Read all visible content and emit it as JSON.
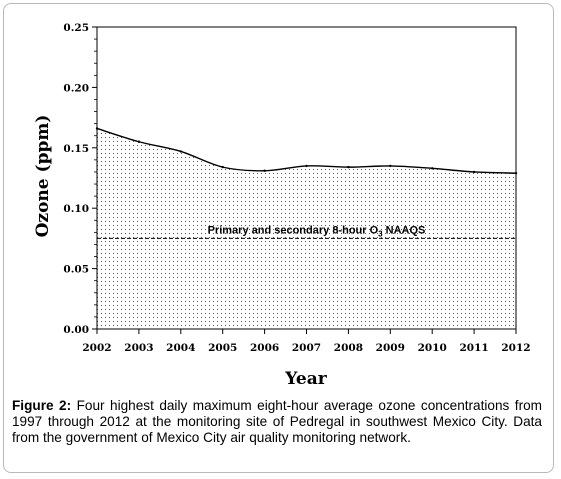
{
  "chart_data": {
    "type": "area",
    "xlabel": "Year",
    "ylabel": "Ozone (ppm)",
    "x": [
      2002,
      2003,
      2004,
      2005,
      2006,
      2007,
      2008,
      2009,
      2010,
      2011,
      2012
    ],
    "series": [
      {
        "values": [
          0.166,
          0.155,
          0.147,
          0.134,
          0.131,
          0.135,
          0.134,
          0.135,
          0.133,
          0.13,
          0.129
        ]
      }
    ],
    "xlim": [
      2002,
      2012
    ],
    "ylim": [
      0,
      0.25
    ],
    "yticks": [
      "0.00",
      "0.05",
      "0.10",
      "0.15",
      "0.20",
      "0.25"
    ],
    "xticks": [
      "2002",
      "2003",
      "2004",
      "2005",
      "2006",
      "2007",
      "2008",
      "2009",
      "2010",
      "2011",
      "2012"
    ],
    "reference_line": {
      "value": 0.075,
      "label_prefix": "Primary and secondary 8-hour O",
      "label_subscript": "3",
      "label_suffix": " NAAQS"
    },
    "grid": false,
    "colors": {
      "line": "#000000",
      "dots": "#555555",
      "ref_line": "#000000"
    }
  },
  "caption": {
    "label": "Figure 2:",
    "text": " Four highest daily maximum eight-hour average ozone concentrations from 1997 through 2012 at the monitoring site of Pedregal in southwest Mexico City. Data from the government of Mexico City air quality monitoring network."
  }
}
